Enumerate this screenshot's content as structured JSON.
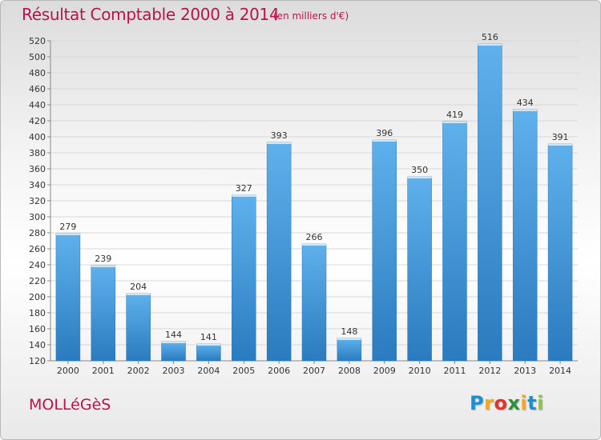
{
  "header": {
    "title": "Résultat Comptable 2000 à 2014",
    "subtitle": "(en milliers d'€)"
  },
  "footer": {
    "town": "MOLLéGèS",
    "logo_letters": [
      {
        "char": "P",
        "color": "#1a8fd6"
      },
      {
        "char": "r",
        "color": "#f5a623"
      },
      {
        "char": "o",
        "color": "#e2342b"
      },
      {
        "char": "x",
        "color": "#2c8f3a"
      },
      {
        "char": "i",
        "color": "#f5a623"
      },
      {
        "char": "t",
        "color": "#1a8fd6"
      },
      {
        "char": "i",
        "color": "#8cc63f"
      }
    ]
  },
  "colors": {
    "bar_top": "#5fb1ec",
    "bar_bottom": "#2a7bbf",
    "text_accent": "#b8134a",
    "grid": "#d8d8d8"
  },
  "chart_data": {
    "type": "bar",
    "categories": [
      "2000",
      "2001",
      "2002",
      "2003",
      "2004",
      "2005",
      "2006",
      "2007",
      "2008",
      "2009",
      "2010",
      "2011",
      "2012",
      "2013",
      "2014"
    ],
    "values": [
      279,
      239,
      204,
      144,
      141,
      327,
      393,
      266,
      148,
      396,
      350,
      419,
      516,
      434,
      391
    ],
    "title": "Résultat Comptable 2000 à 2014",
    "subtitle": "(en milliers d'€)",
    "ylim": [
      120,
      520
    ],
    "yticks": [
      120,
      140,
      160,
      180,
      200,
      220,
      240,
      260,
      280,
      300,
      320,
      340,
      360,
      380,
      400,
      420,
      440,
      460,
      480,
      500,
      520
    ],
    "grid": true,
    "data_labels": true
  }
}
